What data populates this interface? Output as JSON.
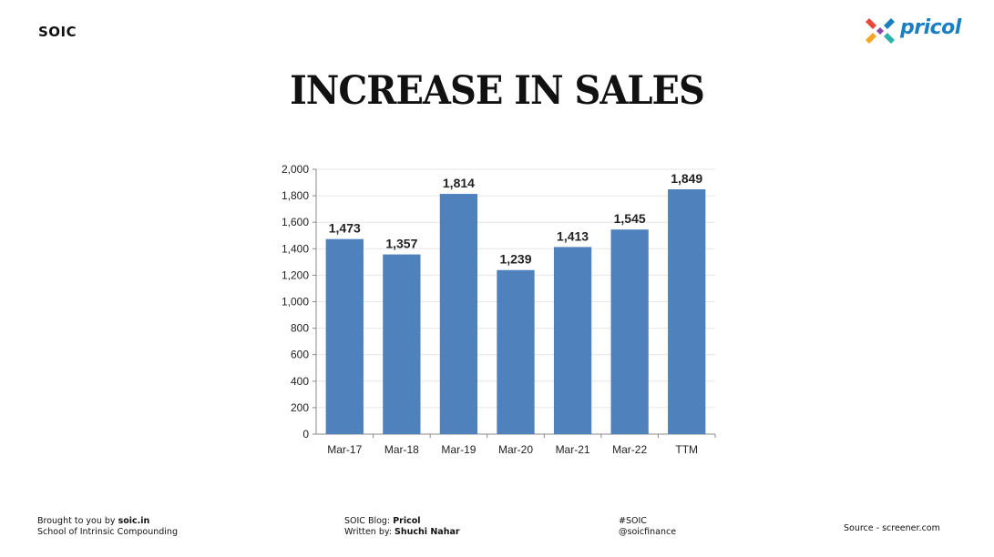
{
  "header": {
    "brand": "SOIC",
    "logo_text": "pricol",
    "title": "INCREASE IN SALES"
  },
  "chart_data": {
    "type": "bar",
    "title": "",
    "xlabel": "",
    "ylabel": "",
    "categories": [
      "Mar-17",
      "Mar-18",
      "Mar-19",
      "Mar-20",
      "Mar-21",
      "Mar-22",
      "TTM"
    ],
    "values": [
      1473,
      1357,
      1814,
      1239,
      1413,
      1545,
      1849
    ],
    "data_labels": [
      "1,473",
      "1,357",
      "1,814",
      "1,239",
      "1,413",
      "1,545",
      "1,849"
    ],
    "ylim": [
      0,
      2000
    ],
    "yticks": [
      "0",
      "200",
      "400",
      "600",
      "800",
      "1,000",
      "1,200",
      "1,400",
      "1,600",
      "1,800",
      "2,000"
    ],
    "grid": true,
    "bar_color": "#4f81bd"
  },
  "footer": {
    "brought_prefix": "Brought to you by ",
    "brought_site": "soic.in",
    "school": "School of Intrinsic Compounding",
    "blog_prefix": "SOIC Blog: ",
    "blog_name": "Pricol",
    "written_prefix": "Written by: ",
    "author": "Shuchi Nahar",
    "hashtag": "#SOIC",
    "handle": "@soicfinance",
    "source": "Source -  screener.com"
  }
}
